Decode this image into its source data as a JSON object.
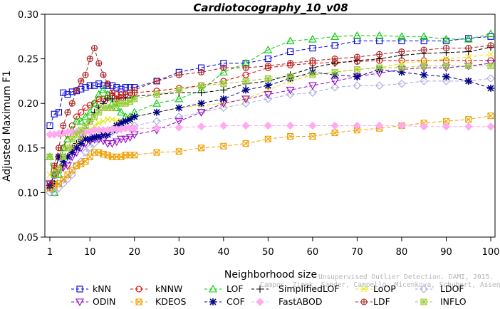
{
  "chart_data": {
    "type": "line",
    "title": "Cardiotocography_10_v08",
    "xlabel": "Neighborhood size",
    "ylabel": "Adjusted Maximum F1",
    "xlim": [
      1,
      100
    ],
    "ylim": [
      0.05,
      0.3
    ],
    "xticks": [
      1,
      10,
      20,
      30,
      40,
      50,
      60,
      70,
      80,
      90,
      100
    ],
    "yticks": [
      "0.05",
      "0.10",
      "0.15",
      "0.20",
      "0.25",
      "0.30"
    ],
    "legend_position": "bottom",
    "x_sample": [
      1,
      2,
      3,
      4,
      5,
      6,
      7,
      8,
      9,
      10,
      11,
      12,
      13,
      14,
      15,
      16,
      17,
      18,
      19,
      20,
      25,
      30,
      35,
      40,
      45,
      50,
      55,
      60,
      65,
      70,
      75,
      80,
      85,
      90,
      95,
      100
    ],
    "series": [
      {
        "name": "kNN",
        "color": "#0000dd",
        "marker": "square",
        "dash": "5,3",
        "values": [
          0.175,
          0.188,
          0.19,
          0.212,
          0.21,
          0.213,
          0.214,
          0.216,
          0.218,
          0.22,
          0.22,
          0.222,
          0.22,
          0.22,
          0.22,
          0.218,
          0.216,
          0.218,
          0.218,
          0.218,
          0.225,
          0.235,
          0.24,
          0.245,
          0.245,
          0.25,
          0.258,
          0.262,
          0.265,
          0.27,
          0.27,
          0.27,
          0.27,
          0.27,
          0.273,
          0.275
        ]
      },
      {
        "name": "kNNW",
        "color": "#dd0000",
        "marker": "circle",
        "dash": "5,3",
        "values": [
          0.105,
          0.125,
          0.14,
          0.15,
          0.165,
          0.175,
          0.185,
          0.19,
          0.195,
          0.198,
          0.2,
          0.205,
          0.205,
          0.206,
          0.208,
          0.21,
          0.21,
          0.21,
          0.212,
          0.212,
          0.214,
          0.217,
          0.22,
          0.225,
          0.232,
          0.24,
          0.243,
          0.245,
          0.246,
          0.247,
          0.248,
          0.248,
          0.248,
          0.248,
          0.248,
          0.248
        ]
      },
      {
        "name": "LOF",
        "color": "#00cc00",
        "marker": "triangle",
        "dash": "5,3",
        "values": [
          0.14,
          0.1,
          0.12,
          0.15,
          0.16,
          0.17,
          0.18,
          0.18,
          0.185,
          0.19,
          0.2,
          0.21,
          0.215,
          0.21,
          0.2,
          0.195,
          0.19,
          0.185,
          0.185,
          0.19,
          0.2,
          0.205,
          0.215,
          0.235,
          0.245,
          0.26,
          0.27,
          0.272,
          0.275,
          0.276,
          0.276,
          0.275,
          0.275,
          0.272,
          0.272,
          0.278
        ]
      },
      {
        "name": "SimplifiedLOF",
        "color": "#000000",
        "marker": "plus",
        "dash": "5,3",
        "values": [
          0.105,
          0.11,
          0.125,
          0.13,
          0.14,
          0.15,
          0.155,
          0.16,
          0.17,
          0.18,
          0.19,
          0.195,
          0.2,
          0.205,
          0.205,
          0.205,
          0.206,
          0.206,
          0.206,
          0.208,
          0.21,
          0.212,
          0.212,
          0.215,
          0.222,
          0.225,
          0.232,
          0.24,
          0.245,
          0.248,
          0.25,
          0.254,
          0.256,
          0.257,
          0.258,
          0.263
        ]
      },
      {
        "name": "LoOP",
        "color": "#e6e600",
        "marker": "cross",
        "dash": "5,3",
        "values": [
          0.12,
          0.125,
          0.13,
          0.135,
          0.14,
          0.15,
          0.155,
          0.16,
          0.165,
          0.17,
          0.175,
          0.178,
          0.18,
          0.182,
          0.182,
          0.18,
          0.18,
          0.18,
          0.183,
          0.185,
          0.19,
          0.195,
          0.198,
          0.2,
          0.205,
          0.215,
          0.225,
          0.232,
          0.235,
          0.238,
          0.24,
          0.245,
          0.247,
          0.25,
          0.252,
          0.255
        ]
      },
      {
        "name": "LDOF",
        "color": "#aaaadd",
        "marker": "diamond",
        "dash": "5,3",
        "values": [
          0.1,
          0.1,
          0.105,
          0.11,
          0.115,
          0.12,
          0.13,
          0.135,
          0.145,
          0.15,
          0.155,
          0.16,
          0.162,
          0.165,
          0.168,
          0.17,
          0.172,
          0.175,
          0.175,
          0.175,
          0.18,
          0.185,
          0.19,
          0.195,
          0.2,
          0.205,
          0.21,
          0.212,
          0.218,
          0.22,
          0.22,
          0.222,
          0.225,
          0.225,
          0.225,
          0.228
        ]
      },
      {
        "name": "ODIN",
        "color": "#9900cc",
        "marker": "triangle-down",
        "dash": "5,3",
        "values": [
          0.11,
          0.12,
          0.125,
          0.128,
          0.13,
          0.14,
          0.145,
          0.15,
          0.155,
          0.158,
          0.16,
          0.16,
          0.158,
          0.155,
          0.155,
          0.157,
          0.16,
          0.16,
          0.162,
          0.165,
          0.17,
          0.18,
          0.19,
          0.2,
          0.205,
          0.21,
          0.215,
          0.22,
          0.225,
          0.23,
          0.234,
          0.238,
          0.24,
          0.24,
          0.242,
          0.245
        ]
      },
      {
        "name": "KDEOS",
        "color": "#f0a000",
        "marker": "square-x",
        "dash": "5,3",
        "values": [
          0.105,
          0.108,
          0.11,
          0.115,
          0.12,
          0.125,
          0.13,
          0.132,
          0.135,
          0.14,
          0.145,
          0.145,
          0.143,
          0.142,
          0.14,
          0.14,
          0.14,
          0.142,
          0.142,
          0.142,
          0.145,
          0.146,
          0.15,
          0.152,
          0.155,
          0.16,
          0.163,
          0.163,
          0.167,
          0.17,
          0.172,
          0.175,
          0.178,
          0.18,
          0.182,
          0.186
        ]
      },
      {
        "name": "COF",
        "color": "#000088",
        "marker": "star",
        "dash": "5,3",
        "values": [
          0.108,
          0.12,
          0.14,
          0.135,
          0.14,
          0.145,
          0.15,
          0.155,
          0.16,
          0.16,
          0.162,
          0.163,
          0.165,
          0.165,
          0.17,
          0.175,
          0.178,
          0.18,
          0.182,
          0.185,
          0.19,
          0.195,
          0.2,
          0.205,
          0.215,
          0.22,
          0.228,
          0.235,
          0.232,
          0.23,
          0.238,
          0.235,
          0.232,
          0.23,
          0.225,
          0.217
        ]
      },
      {
        "name": "FastABOD",
        "color": "#ffaaee",
        "marker": "diamond-fill",
        "dash": "5,3",
        "values": [
          0.165,
          0.165,
          0.166,
          0.167,
          0.168,
          0.168,
          0.168,
          0.168,
          0.168,
          0.168,
          0.17,
          0.17,
          0.17,
          0.17,
          0.171,
          0.171,
          0.171,
          0.172,
          0.172,
          0.172,
          0.172,
          0.173,
          0.174,
          0.175,
          0.175,
          0.175,
          0.175,
          0.175,
          0.175,
          0.175,
          0.175,
          0.175,
          0.174,
          0.174,
          0.174,
          0.174
        ]
      },
      {
        "name": "LDF",
        "color": "#aa2222",
        "marker": "circle-plus",
        "dash": "5,3",
        "values": [
          0.11,
          0.13,
          0.15,
          0.175,
          0.19,
          0.2,
          0.215,
          0.225,
          0.232,
          0.25,
          0.262,
          0.245,
          0.232,
          0.222,
          0.212,
          0.205,
          0.206,
          0.21,
          0.212,
          0.215,
          0.225,
          0.232,
          0.235,
          0.24,
          0.24,
          0.242,
          0.245,
          0.248,
          0.25,
          0.252,
          0.255,
          0.258,
          0.26,
          0.262,
          0.262,
          0.265
        ]
      },
      {
        "name": "INFLO",
        "color": "#99cc33",
        "marker": "asterisk-box",
        "dash": "5,3",
        "values": [
          0.14,
          0.12,
          0.125,
          0.14,
          0.15,
          0.16,
          0.165,
          0.17,
          0.175,
          0.18,
          0.185,
          0.19,
          0.195,
          0.195,
          0.195,
          0.2,
          0.2,
          0.2,
          0.202,
          0.205,
          0.21,
          0.215,
          0.22,
          0.222,
          0.225,
          0.228,
          0.23,
          0.232,
          0.235,
          0.238,
          0.24,
          0.24,
          0.242,
          0.242,
          0.242,
          0.242
        ]
      }
    ]
  },
  "watermark": {
    "line1": "Unsupervised Outlier Detection. DAMI, 2015.",
    "line2": "Campos, Zimek, Sander, Campello, Micenkova, Schubert, Assent, Houle"
  }
}
